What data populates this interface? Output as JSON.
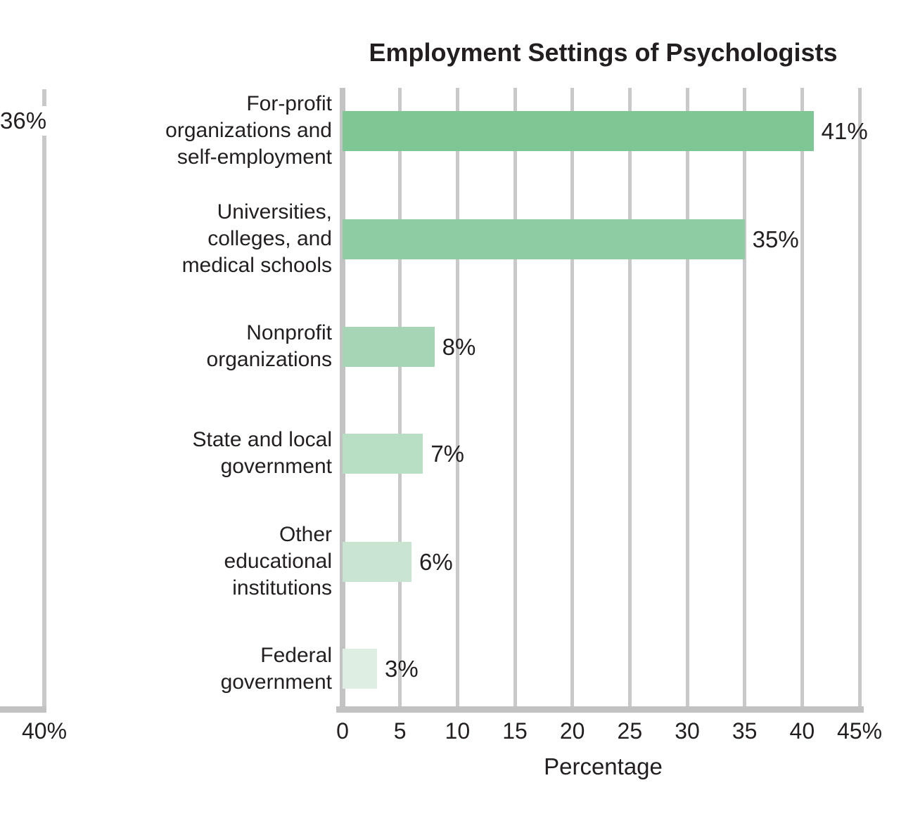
{
  "chart_data": {
    "type": "bar",
    "orientation": "horizontal",
    "title": "Employment Settings of Psychologists",
    "xlabel": "Percentage",
    "categories": [
      "For-profit\norganizations and\nself-employment",
      "Universities,\ncolleges, and\nmedical schools",
      "Nonprofit\norganizations",
      "State and local\ngovernment",
      "Other\neducational\ninstitutions",
      "Federal\ngovernment"
    ],
    "values": [
      41,
      35,
      8,
      7,
      6,
      3
    ],
    "value_labels": [
      "41%",
      "35%",
      "8%",
      "7%",
      "6%",
      "3%"
    ],
    "bar_colors": [
      "#7ec795",
      "#8ecca3",
      "#a6d5b5",
      "#b8dec4",
      "#c9e4d1",
      "#deeee2"
    ],
    "xlim": [
      0,
      45
    ],
    "xticks": [
      0,
      5,
      10,
      15,
      20,
      25,
      30,
      35,
      40,
      45
    ],
    "xtick_labels": [
      "0",
      "5",
      "10",
      "15",
      "20",
      "25",
      "30",
      "35",
      "40",
      "45%"
    ],
    "grid": true,
    "legend": "none"
  },
  "left_partial": {
    "value_label": "36%",
    "tick_label": "40%"
  },
  "colors": {
    "gridline": "#c9c9c9",
    "axis": "#c2c2c2",
    "text": "#231f20"
  }
}
